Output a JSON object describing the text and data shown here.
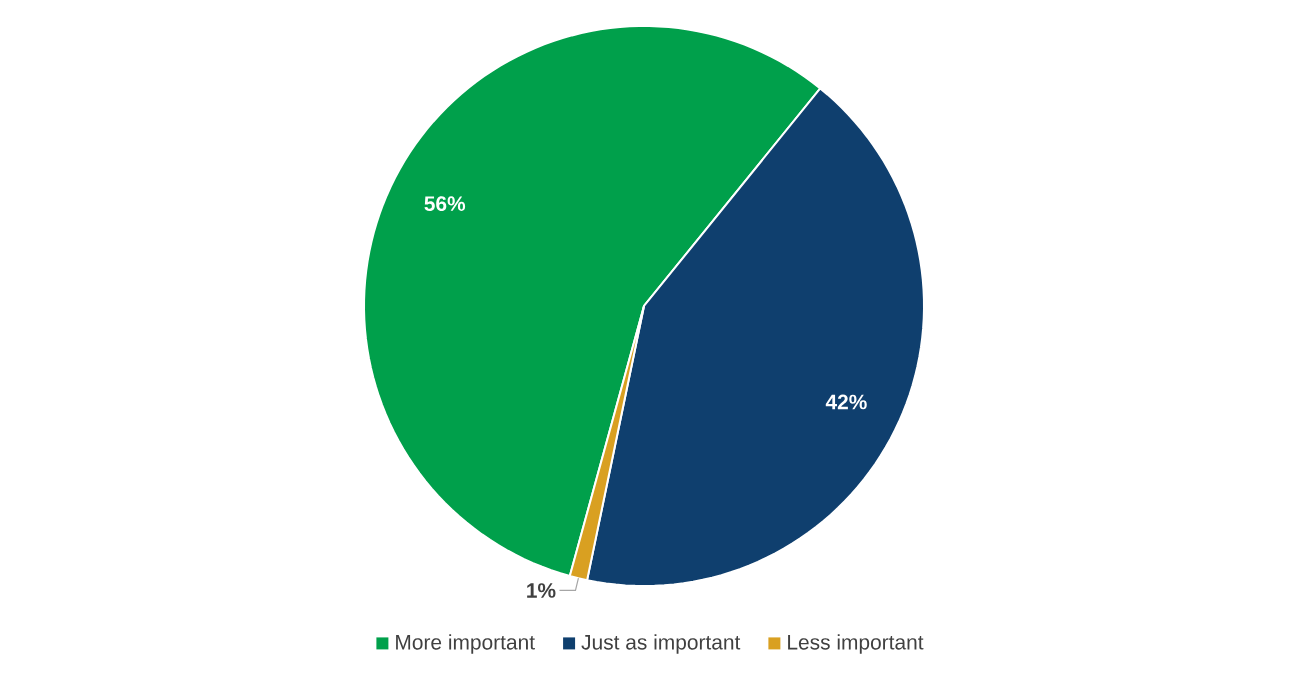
{
  "chart_data": {
    "type": "pie",
    "categories": [
      "More important",
      "Just as important",
      "Less important"
    ],
    "values": [
      56,
      42,
      1
    ],
    "colors": [
      "#00a04b",
      "#0f3f6e",
      "#d9a021"
    ],
    "value_labels": [
      "56%",
      "42%",
      "1%"
    ],
    "legend": "bottom"
  }
}
